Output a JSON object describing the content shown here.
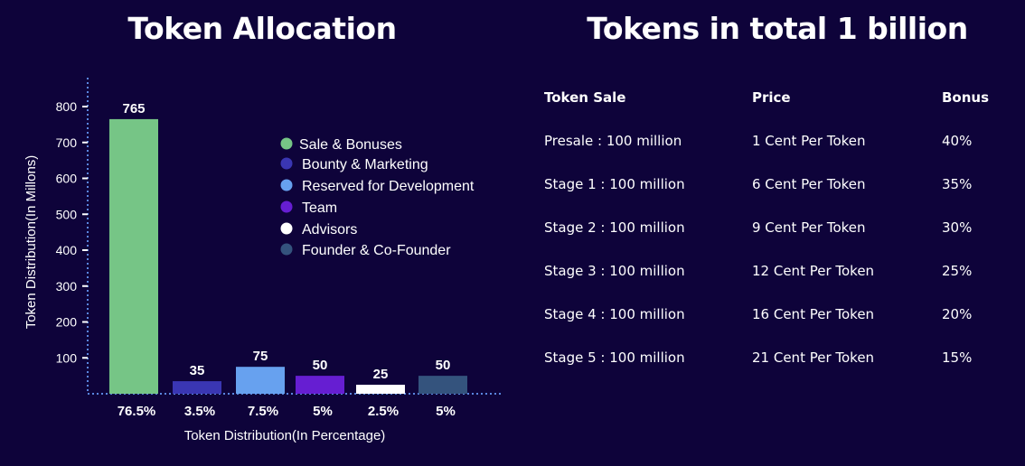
{
  "chart_title": "Token Allocation",
  "table_title": "Tokens in total 1 billion",
  "colors": {
    "background": "#0e033a",
    "axis": "#5a86e0",
    "text": "#ffffff"
  },
  "chart_data": {
    "type": "bar",
    "title": "Token Allocation",
    "categories": [
      "Sale & Bonuses",
      "Bounty & Marketing",
      "Reserved for Development",
      "Team",
      "Advisors",
      "Founder & Co-Founder"
    ],
    "values": [
      765,
      35,
      75,
      50,
      25,
      50
    ],
    "value_labels": [
      "765",
      "35",
      "75",
      "50",
      "25",
      "50"
    ],
    "x_tick_labels": [
      "76.5%",
      "3.5%",
      "7.5%",
      "5%",
      "2.5%",
      "5%"
    ],
    "colors": [
      "#76c586",
      "#3a36b3",
      "#67a1ef",
      "#661ed2",
      "#ffffff",
      "#34537d"
    ],
    "xlabel": "Token Distribution(In Percentage)",
    "ylabel": "Token Distribution(In Millons)",
    "ylim": [
      0,
      870
    ],
    "y_ticks": [
      100,
      200,
      300,
      400,
      500,
      600,
      700,
      800
    ],
    "grid": false,
    "legend_position": "top-right",
    "legend": [
      {
        "label": "Sale & Bonuses",
        "color": "#76c586"
      },
      {
        "label": "Bounty & Marketing",
        "color": "#3a36b3"
      },
      {
        "label": "Reserved for Development",
        "color": "#67a1ef"
      },
      {
        "label": "Team",
        "color": "#661ed2"
      },
      {
        "label": "Advisors",
        "color": "#ffffff"
      },
      {
        "label": "Founder & Co-Founder",
        "color": "#34537d"
      }
    ]
  },
  "table": {
    "headers": [
      "Token Sale",
      "Price",
      "Bonus"
    ],
    "rows": [
      [
        "Presale : 100 million",
        "1 Cent Per Token",
        "40%"
      ],
      [
        "Stage 1 : 100 million",
        "6 Cent Per Token",
        "35%"
      ],
      [
        "Stage 2 : 100 million",
        "9 Cent Per Token",
        "30%"
      ],
      [
        "Stage 3 : 100 million",
        "12 Cent Per Token",
        "25%"
      ],
      [
        "Stage 4 : 100 million",
        "16 Cent Per Token",
        "20%"
      ],
      [
        "Stage 5 : 100 million",
        "21 Cent Per Token",
        "15%"
      ]
    ]
  }
}
